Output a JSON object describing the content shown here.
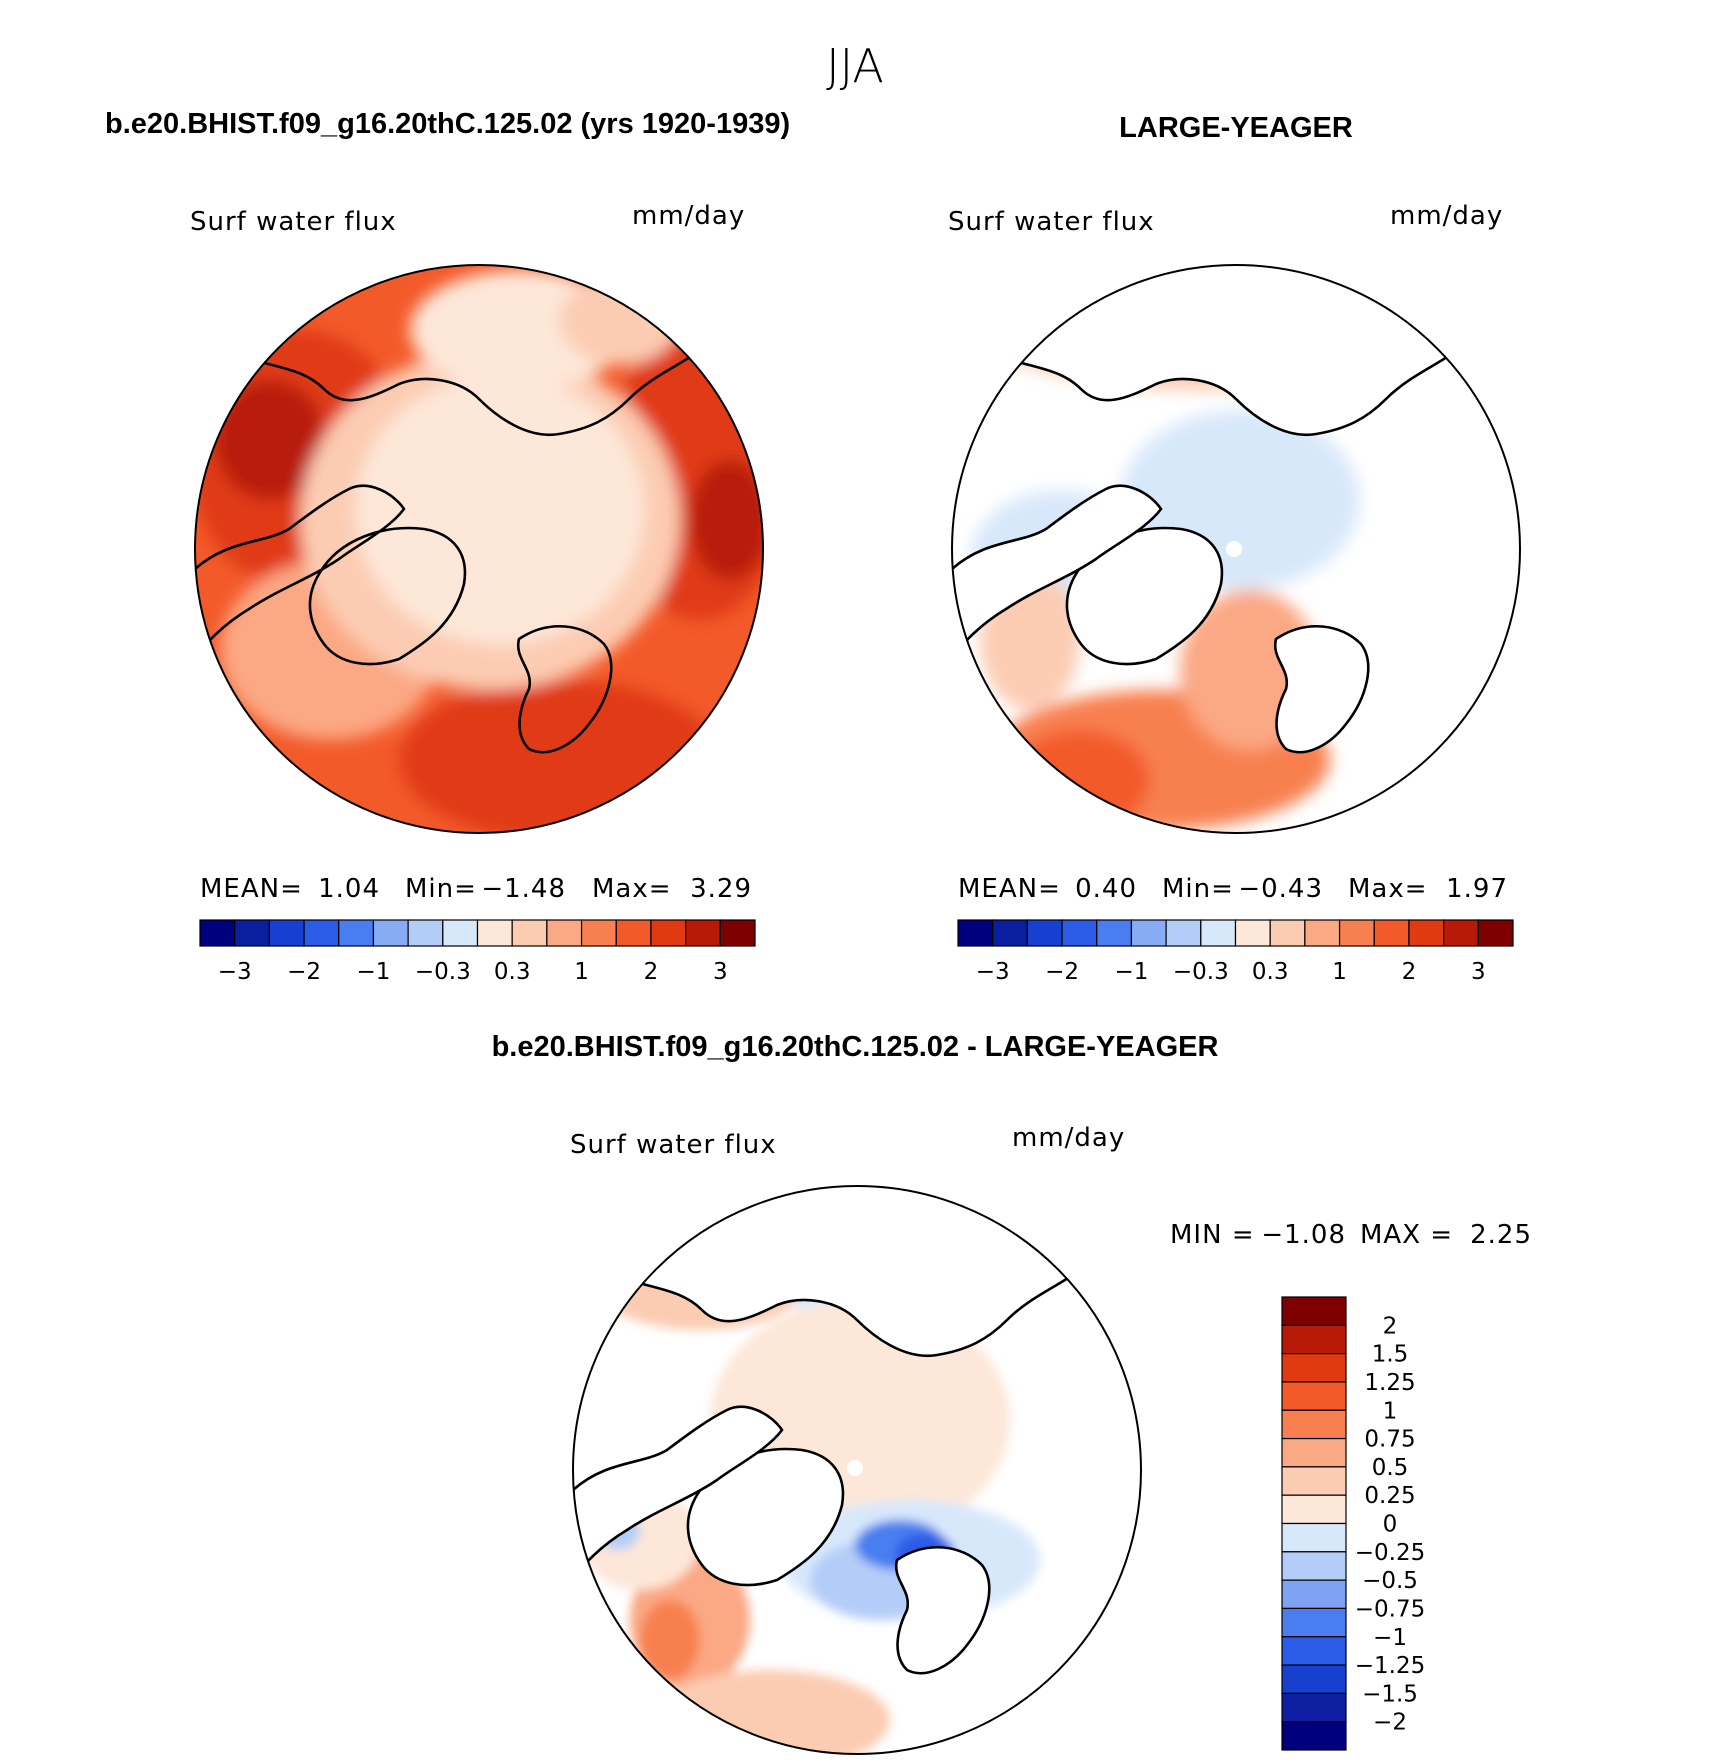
{
  "figure": {
    "title": "JJA"
  },
  "colors": {
    "diverging": [
      "#00007f",
      "#0a1fa0",
      "#1740d0",
      "#2a5ce8",
      "#4a7ef0",
      "#88abf5",
      "#b4cdf8",
      "#d8e8fb",
      "#fde7d8",
      "#fcccb2",
      "#fba884",
      "#f88050",
      "#f35a2a",
      "#e03a13",
      "#b81a08",
      "#7f0000"
    ],
    "diff": [
      "#00007f",
      "#0f1fa3",
      "#1740d0",
      "#2a5ce8",
      "#4a7ef0",
      "#7ea3f5",
      "#b4cdf8",
      "#d8e8fb",
      "#fde7d8",
      "#fcccb2",
      "#fba884",
      "#f88050",
      "#f35a2a",
      "#e03a13",
      "#b81a08",
      "#7f0000"
    ]
  },
  "chart_data": [
    {
      "type": "heatmap",
      "panel": "left",
      "header": "b.e20.BHIST.f09_g16.20thC.125.02 (yrs 1920-1939)",
      "title": "Surf water flux",
      "units": "mm/day",
      "projection": "north polar stereographic",
      "stats": {
        "mean_label": "MEAN=",
        "mean": "1.04",
        "min_label": "Min=",
        "min": "−1.48",
        "max_label": "Max=",
        "max": "3.29"
      },
      "colorbar_levels": [
        -3,
        -2.5,
        -2,
        -1.5,
        -1,
        -0.5,
        -0.3,
        0,
        0.3,
        0.5,
        1,
        1.5,
        2,
        2.5,
        3
      ],
      "colorbar_tick_labels": [
        "−3",
        "−2",
        "−1",
        "−0.3",
        "0.3",
        "1",
        "2",
        "3"
      ]
    },
    {
      "type": "heatmap",
      "panel": "right",
      "header": "LARGE-YEAGER",
      "title": "Surf water flux",
      "units": "mm/day",
      "projection": "north polar stereographic",
      "stats": {
        "mean_label": "MEAN=",
        "mean": "0.40",
        "min_label": "Min=",
        "min": "−0.43",
        "max_label": "Max=",
        "max": "1.97"
      },
      "colorbar_levels": [
        -3,
        -2.5,
        -2,
        -1.5,
        -1,
        -0.5,
        -0.3,
        0,
        0.3,
        0.5,
        1,
        1.5,
        2,
        2.5,
        3
      ],
      "colorbar_tick_labels": [
        "−3",
        "−2",
        "−1",
        "−0.3",
        "0.3",
        "1",
        "2",
        "3"
      ]
    },
    {
      "type": "heatmap",
      "panel": "difference",
      "header": "b.e20.BHIST.f09_g16.20thC.125.02 - LARGE-YEAGER",
      "title": "Surf water flux",
      "units": "mm/day",
      "projection": "north polar stereographic",
      "stats": {
        "min_label": "MIN =",
        "min": "−1.08",
        "max_label": "MAX =",
        "max": "2.25"
      },
      "colorbar_levels": [
        -2,
        -1.5,
        -1.25,
        -1,
        -0.75,
        -0.5,
        -0.25,
        0,
        0.25,
        0.5,
        0.75,
        1,
        1.25,
        1.5,
        2
      ],
      "colorbar_tick_labels": [
        "2",
        "1.5",
        "1.25",
        "1",
        "0.75",
        "0.5",
        "0.25",
        "0",
        "−0.25",
        "−0.5",
        "−0.75",
        "−1",
        "−1.25",
        "−1.5",
        "−2"
      ]
    }
  ]
}
